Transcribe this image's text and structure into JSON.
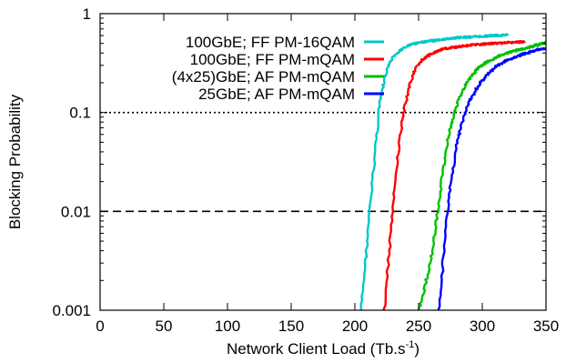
{
  "chart_data": {
    "type": "line",
    "title": "",
    "xlabel": "Network Client Load (Tb.s",
    "xlabel_sup": "-1",
    "xlabel_close": ")",
    "ylabel": "Blocking Probability",
    "xlim": [
      0,
      350
    ],
    "ylim": [
      0.001,
      1
    ],
    "y_scale": "log",
    "x_ticks": [
      0,
      50,
      100,
      150,
      200,
      250,
      300,
      350
    ],
    "y_ticks": [
      {
        "value": 1,
        "label": "1"
      },
      {
        "value": 0.1,
        "label": "0.1"
      },
      {
        "value": 0.01,
        "label": "0.01"
      },
      {
        "value": 0.001,
        "label": "0.001"
      }
    ],
    "grid": false,
    "legend_position": "top-right",
    "reference_lines": [
      {
        "y": 0.1,
        "style": "dotted"
      },
      {
        "y": 0.01,
        "style": "dashed"
      }
    ],
    "series": [
      {
        "name": "100GbE; FF PM-16QAM",
        "color": "#00c8c8",
        "x": [
          205,
          207,
          209,
          211,
          213,
          215,
          217,
          219,
          222,
          225,
          228,
          232,
          236,
          240,
          245,
          250,
          260,
          270,
          280,
          290,
          300,
          310,
          320
        ],
        "y": [
          0.001,
          0.002,
          0.004,
          0.008,
          0.015,
          0.03,
          0.06,
          0.11,
          0.18,
          0.26,
          0.33,
          0.39,
          0.43,
          0.46,
          0.49,
          0.51,
          0.53,
          0.55,
          0.57,
          0.58,
          0.59,
          0.6,
          0.61
        ]
      },
      {
        "name": "100GbE; FF PM-mQAM",
        "color": "#ff0000",
        "x": [
          223,
          225,
          227,
          229,
          231,
          233,
          235,
          237,
          240,
          243,
          246,
          250,
          255,
          260,
          265,
          270,
          280,
          290,
          300,
          310,
          320,
          333
        ],
        "y": [
          0.001,
          0.002,
          0.004,
          0.008,
          0.015,
          0.03,
          0.05,
          0.08,
          0.13,
          0.19,
          0.25,
          0.31,
          0.36,
          0.39,
          0.42,
          0.44,
          0.46,
          0.48,
          0.49,
          0.5,
          0.51,
          0.52
        ]
      },
      {
        "name": "(4x25)GbE; AF PM-mQAM",
        "color": "#00c000",
        "x": [
          250,
          253,
          256,
          259,
          262,
          264,
          266,
          268,
          270,
          272,
          275,
          278,
          282,
          287,
          292,
          298,
          305,
          315,
          325,
          335,
          345,
          350
        ],
        "y": [
          0.001,
          0.0013,
          0.002,
          0.003,
          0.005,
          0.008,
          0.012,
          0.02,
          0.03,
          0.045,
          0.07,
          0.1,
          0.14,
          0.19,
          0.24,
          0.29,
          0.33,
          0.38,
          0.42,
          0.45,
          0.49,
          0.51
        ]
      },
      {
        "name": "25GbE; AF PM-mQAM",
        "color": "#0000ff",
        "x": [
          266,
          268,
          270,
          272,
          274,
          276,
          278,
          280,
          283,
          286,
          290,
          295,
          300,
          305,
          312,
          320,
          330,
          340,
          350
        ],
        "y": [
          0.001,
          0.002,
          0.004,
          0.008,
          0.014,
          0.022,
          0.033,
          0.048,
          0.07,
          0.095,
          0.13,
          0.17,
          0.21,
          0.25,
          0.3,
          0.34,
          0.38,
          0.42,
          0.45
        ]
      }
    ]
  }
}
